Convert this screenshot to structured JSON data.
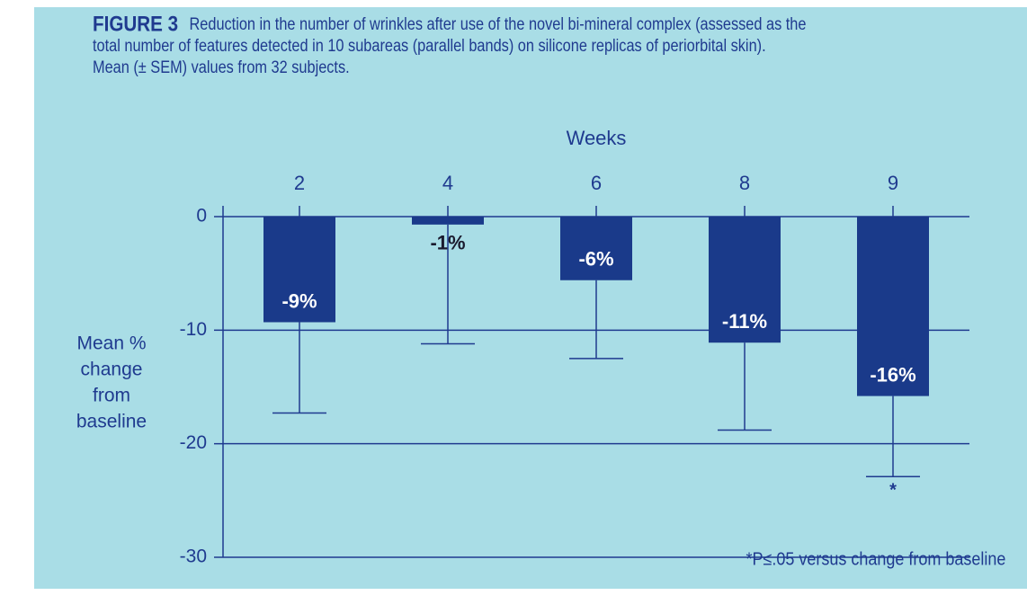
{
  "chart_data": {
    "type": "bar",
    "figure_label": "FIGURE 3",
    "title_lines": [
      "Reduction in the number of wrinkles after use of the novel bi-mineral complex (assessed as the",
      "total number of features detected in 10 subareas (parallel bands) on silicone replicas of periorbital skin).",
      "Mean (± SEM) values from 32 subjects."
    ],
    "xlabel": "Weeks",
    "ylabel": [
      "Mean %",
      "change",
      "from",
      "baseline"
    ],
    "categories": [
      "2",
      "4",
      "6",
      "8",
      "9"
    ],
    "values": [
      -9.3,
      -0.7,
      -5.6,
      -11.1,
      -15.8
    ],
    "errors": [
      8.0,
      10.5,
      6.9,
      7.7,
      7.1
    ],
    "value_labels": [
      "-9%",
      "-1%",
      "-6%",
      "-11%",
      "-16%"
    ],
    "color": "#1a3a8a",
    "ylim": [
      -30,
      0
    ],
    "yticks": [
      0,
      -10,
      -20,
      -30
    ],
    "grid": true,
    "annotations": [
      {
        "category": 4,
        "text": "*"
      }
    ],
    "footnote": "*P≤.05 versus change from baseline"
  }
}
